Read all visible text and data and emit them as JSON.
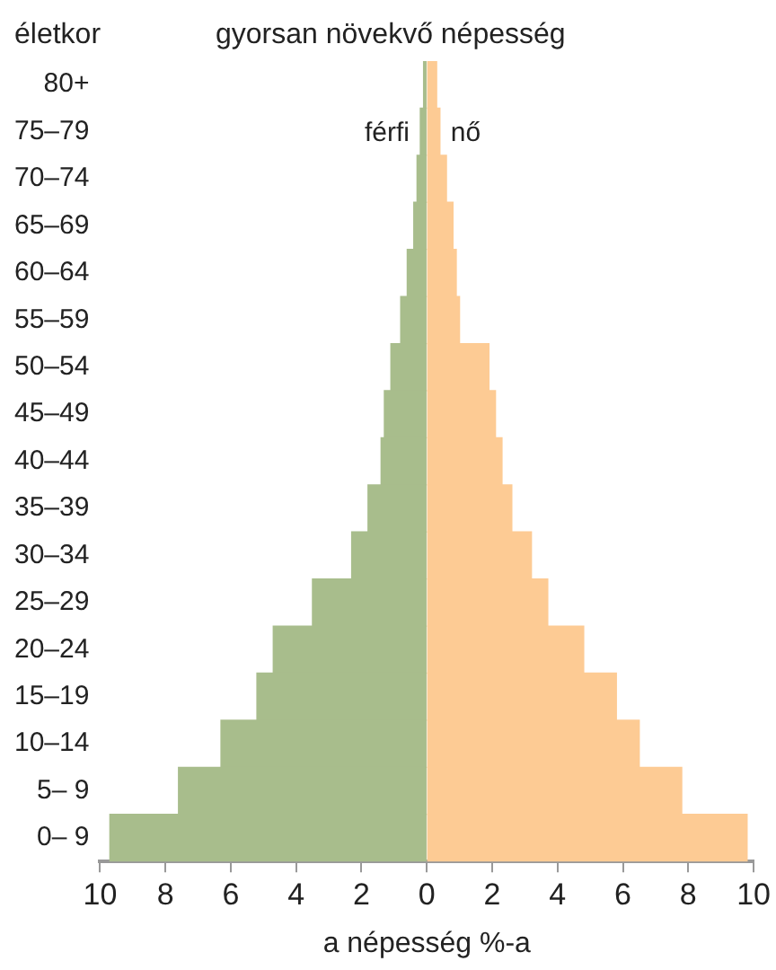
{
  "chart_data": {
    "type": "bar",
    "orientation": "horizontal",
    "stacked": true,
    "title": "gyorsan növekvő népesség",
    "ylabel": "életkor",
    "xlabel": "a népesség %-a",
    "categories": [
      "80+",
      "75–79",
      "70–74",
      "65–69",
      "60–64",
      "55–59",
      "50–54",
      "45–49",
      "40–44",
      "35–39",
      "30–34",
      "25–29",
      "20–24",
      "15–19",
      "10–14",
      "5– 9",
      "0– 9"
    ],
    "series": [
      {
        "name": "férfi",
        "color": "#a8bd8c",
        "values": [
          -0.1,
          -0.2,
          -0.3,
          -0.4,
          -0.6,
          -0.8,
          -1.1,
          -1.3,
          -1.4,
          -1.8,
          -2.3,
          -3.5,
          -4.7,
          -5.2,
          -6.3,
          -7.6,
          -9.7
        ]
      },
      {
        "name": "nő",
        "color": "#fdcb94",
        "values": [
          0.3,
          0.4,
          0.6,
          0.8,
          0.9,
          1.0,
          1.9,
          2.1,
          2.3,
          2.6,
          3.2,
          3.7,
          4.8,
          5.8,
          6.5,
          7.8,
          9.8
        ]
      }
    ],
    "xlim": [
      -10,
      10
    ],
    "xticks": [
      {
        "value": -10,
        "label": "10"
      },
      {
        "value": -8,
        "label": "8"
      },
      {
        "value": -6,
        "label": "6"
      },
      {
        "value": -4,
        "label": "4"
      },
      {
        "value": -2,
        "label": "2"
      },
      0,
      2,
      4,
      6,
      8,
      10
    ],
    "grid": false,
    "legend": false
  }
}
